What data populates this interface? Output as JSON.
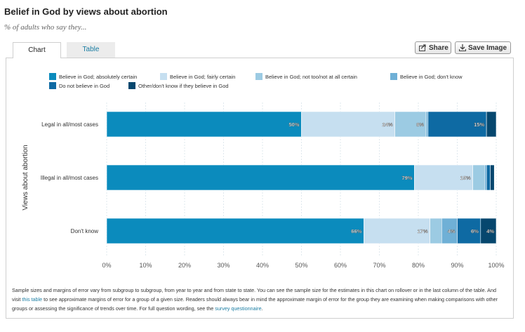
{
  "header": {
    "title": "Belief in God by views about abortion",
    "subtitle": "% of adults who say they..."
  },
  "tabs": {
    "chart": "Chart",
    "table": "Table"
  },
  "toolbar": {
    "share_label": "Share",
    "save_label": "Save Image"
  },
  "note": {
    "part1": "Sample sizes and margins of error vary from subgroup to subgroup, from year to year and from state to state. You can see the sample size for the estimates in this chart on rollover or in the last column of the table. And visit ",
    "link1": "this table",
    "part2": " to see approximate margins of error for a group of a given size. Readers should always bear in mind the approximate margin of error for the group they are examining when making comparisons with other groups or assessing the significance of trends over time. For full question wording, see the ",
    "link2": "survey questionnaire",
    "part3": "."
  },
  "chart_data": {
    "type": "bar",
    "orientation": "horizontal",
    "stacked": true,
    "ylabel": "Views about abortion",
    "categories": [
      "Legal in all/most cases",
      "Illegal in all/most cases",
      "Don't know"
    ],
    "xlim": [
      0,
      100
    ],
    "xticks": [
      "0%",
      "10%",
      "20%",
      "30%",
      "40%",
      "50%",
      "60%",
      "70%",
      "80%",
      "90%",
      "100%"
    ],
    "grid": true,
    "legend_position": "top",
    "series": [
      {
        "name": "Believe in God; absolutely certain",
        "color": "#0b8bbd",
        "values": [
          50,
          79,
          66
        ],
        "labels": [
          "50%",
          "79%",
          "66%"
        ]
      },
      {
        "name": "Believe in God; fairly certain",
        "color": "#c6dff0",
        "values": [
          24,
          15,
          17
        ],
        "labels": [
          "24%",
          "15%",
          "17%"
        ]
      },
      {
        "name": "Believe in God; not too/not at all certain",
        "color": "#9ccbe3",
        "values": [
          8,
          3,
          3
        ],
        "labels": [
          "8%",
          "",
          ""
        ]
      },
      {
        "name": "Believe in God; don't know",
        "color": "#6fb0d6",
        "values": [
          0.5,
          0.5,
          4
        ],
        "labels": [
          "",
          "",
          "4%"
        ]
      },
      {
        "name": "Do not believe in God",
        "color": "#0e6aa3",
        "values": [
          15,
          1,
          6
        ],
        "labels": [
          "15%",
          "",
          "6%"
        ]
      },
      {
        "name": "Other/don't know if they believe in God",
        "color": "#06476e",
        "values": [
          3,
          1,
          4
        ],
        "labels": [
          "",
          "",
          "4%"
        ]
      }
    ]
  }
}
